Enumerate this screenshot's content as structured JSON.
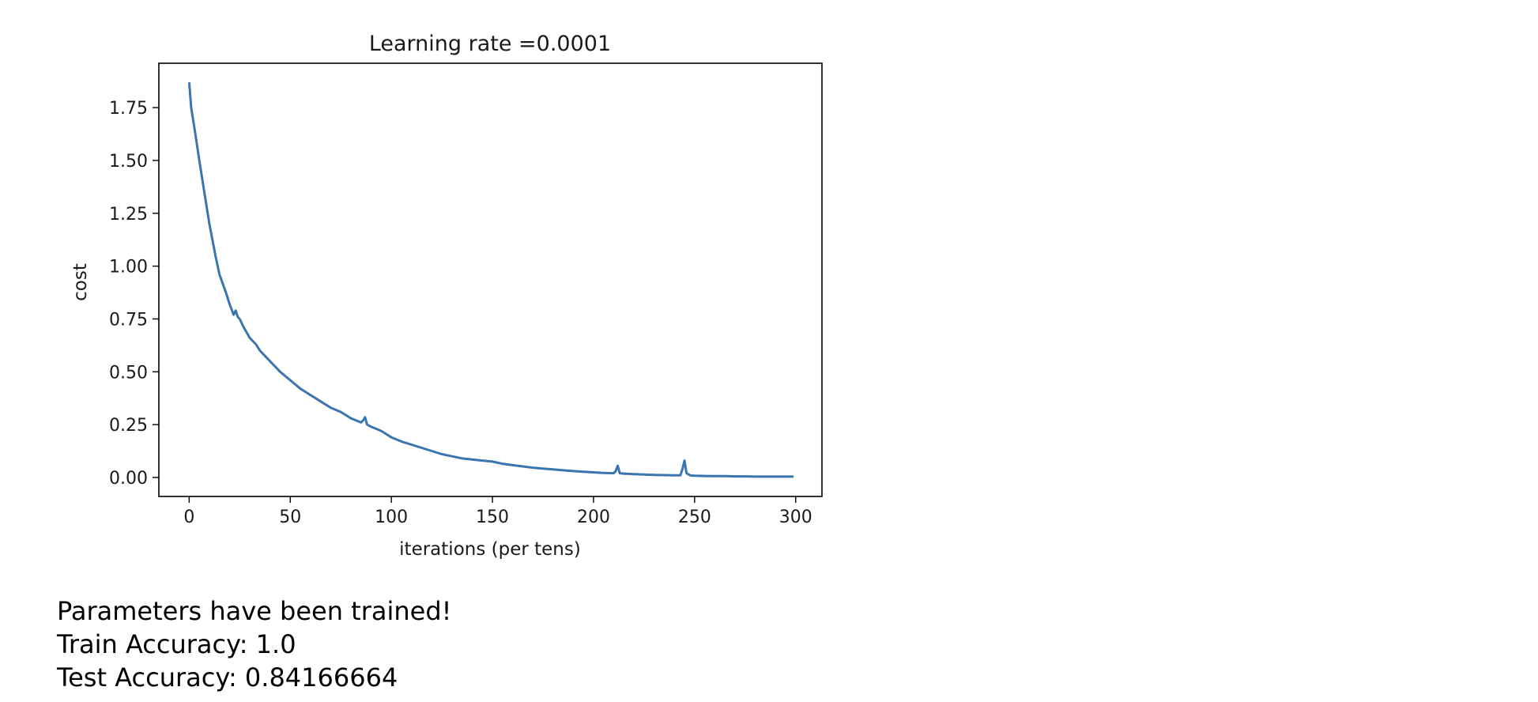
{
  "chart_data": {
    "type": "line",
    "title": "Learning rate =0.0001",
    "xlabel": "iterations (per tens)",
    "ylabel": "cost",
    "xlim": [
      -15,
      313
    ],
    "ylim": [
      -0.09,
      1.96
    ],
    "xticks": [
      0,
      50,
      100,
      150,
      200,
      250,
      300
    ],
    "xtick_labels": [
      "0",
      "50",
      "100",
      "150",
      "200",
      "250",
      "300"
    ],
    "yticks": [
      0.0,
      0.25,
      0.5,
      0.75,
      1.0,
      1.25,
      1.5,
      1.75
    ],
    "ytick_labels": [
      "0.00",
      "0.25",
      "0.50",
      "0.75",
      "1.00",
      "1.25",
      "1.50",
      "1.75"
    ],
    "grid": false,
    "color": "#3b75af",
    "series": [
      {
        "x": [
          0,
          1,
          3,
          5,
          8,
          10,
          13,
          15,
          18,
          20,
          22,
          23,
          24,
          25,
          27,
          30,
          33,
          35,
          40,
          45,
          50,
          55,
          60,
          65,
          70,
          75,
          80,
          85,
          86,
          87,
          88,
          90,
          95,
          100,
          105,
          110,
          115,
          120,
          125,
          130,
          135,
          140,
          145,
          150,
          155,
          160,
          165,
          170,
          175,
          180,
          185,
          190,
          195,
          200,
          205,
          210,
          211,
          212,
          213,
          215,
          220,
          225,
          230,
          235,
          240,
          243,
          244,
          245,
          246,
          248,
          250,
          255,
          260,
          265,
          270,
          275,
          280,
          285,
          290,
          295,
          299
        ],
        "y": [
          1.87,
          1.75,
          1.63,
          1.5,
          1.32,
          1.2,
          1.05,
          0.96,
          0.88,
          0.82,
          0.77,
          0.79,
          0.76,
          0.75,
          0.71,
          0.66,
          0.63,
          0.6,
          0.55,
          0.5,
          0.46,
          0.42,
          0.39,
          0.36,
          0.33,
          0.31,
          0.28,
          0.26,
          0.27,
          0.285,
          0.25,
          0.24,
          0.22,
          0.19,
          0.17,
          0.155,
          0.14,
          0.125,
          0.11,
          0.1,
          0.09,
          0.085,
          0.08,
          0.075,
          0.065,
          0.058,
          0.052,
          0.046,
          0.042,
          0.038,
          0.034,
          0.03,
          0.027,
          0.024,
          0.021,
          0.02,
          0.03,
          0.055,
          0.02,
          0.018,
          0.016,
          0.014,
          0.012,
          0.011,
          0.01,
          0.01,
          0.04,
          0.08,
          0.02,
          0.009,
          0.008,
          0.007,
          0.006,
          0.006,
          0.005,
          0.005,
          0.004,
          0.004,
          0.004,
          0.004,
          0.004
        ]
      }
    ]
  },
  "output": {
    "line1": "Parameters have been trained!",
    "line2": "Train Accuracy: 1.0",
    "line3": "Test Accuracy: 0.84166664"
  }
}
